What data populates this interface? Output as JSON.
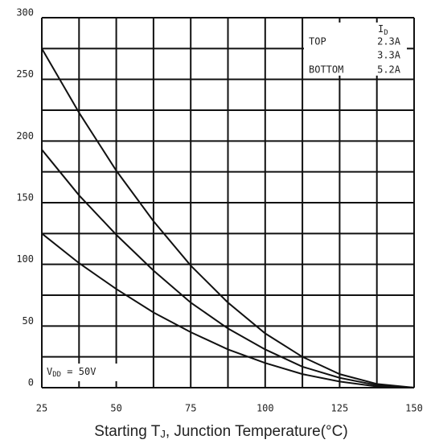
{
  "chart_data": {
    "type": "line",
    "x": [
      25,
      37.5,
      50,
      62.5,
      75,
      87.5,
      100,
      112.5,
      125,
      137.5,
      150
    ],
    "series": [
      {
        "name": "2.3A",
        "color": "#111111",
        "values": [
          275,
          223,
          176,
          135,
          99,
          69,
          44,
          25,
          11,
          3,
          0
        ]
      },
      {
        "name": "3.3A",
        "color": "#111111",
        "values": [
          193,
          156,
          124,
          95,
          69,
          48,
          31,
          17,
          8,
          2,
          0
        ]
      },
      {
        "name": "5.2A",
        "color": "#111111",
        "values": [
          125,
          101,
          80,
          61,
          45,
          31,
          20,
          11,
          5,
          1,
          0
        ]
      }
    ],
    "xlim": [
      25,
      150
    ],
    "xticks": [
      25,
      50,
      75,
      100,
      125,
      150
    ],
    "ylim": [
      0,
      300
    ],
    "yticks": [
      0,
      50,
      100,
      150,
      200,
      250,
      300
    ],
    "xgrid": [
      25,
      37.5,
      50,
      62.5,
      75,
      87.5,
      100,
      112.5,
      125,
      137.5,
      150
    ],
    "ygrid": [
      0,
      25,
      50,
      75,
      100,
      125,
      150,
      175,
      200,
      225,
      250,
      275,
      300
    ],
    "grid": true,
    "xlabel": [
      "Starting T",
      "J",
      ", Junction Temperature(°C)"
    ],
    "legend_title": [
      "I",
      "D"
    ],
    "legend_top": "TOP",
    "legend_bottom": "BOTTOM",
    "annotation": [
      "V",
      "DD",
      " = 50V"
    ]
  }
}
